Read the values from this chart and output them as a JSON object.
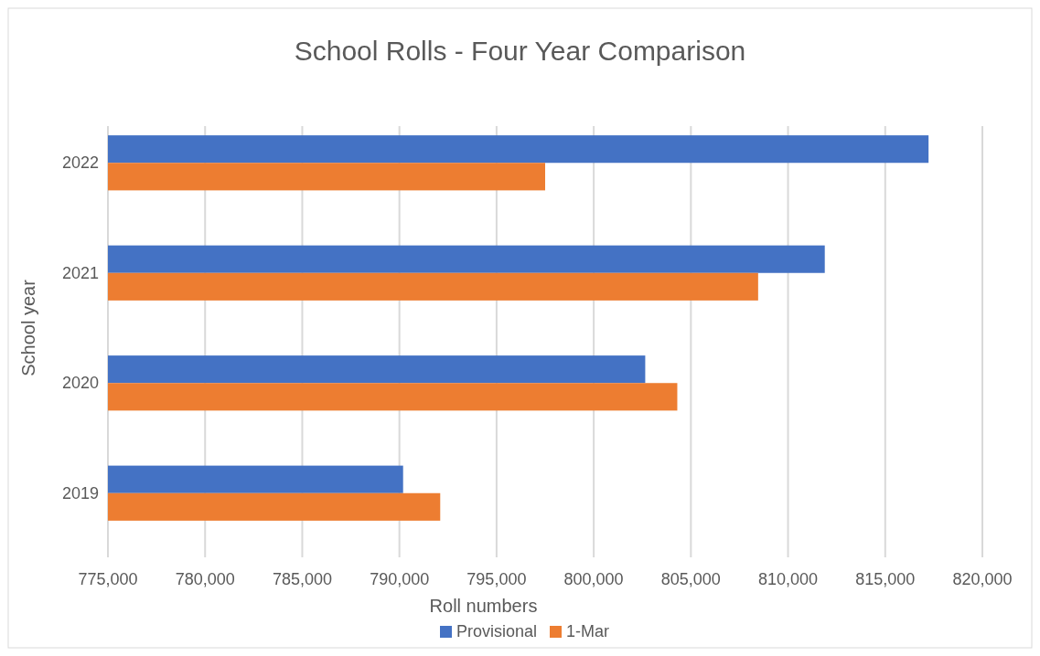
{
  "chart_data": {
    "type": "bar",
    "orientation": "horizontal",
    "title": "School Rolls - Four Year Comparison",
    "xlabel": "Roll numbers",
    "ylabel": "School year",
    "categories": [
      "2022",
      "2021",
      "2020",
      "2019"
    ],
    "series": [
      {
        "name": "Provisional",
        "color": "#4472c4",
        "values": [
          817230,
          811890,
          802650,
          790190
        ]
      },
      {
        "name": "1-Mar",
        "color": "#ed7d31",
        "values": [
          797500,
          808460,
          804300,
          792100
        ]
      }
    ],
    "xlim": [
      775000,
      820000
    ],
    "xticks": [
      {
        "value": 775000,
        "label": "775,000"
      },
      {
        "value": 780000,
        "label": "780,000"
      },
      {
        "value": 785000,
        "label": "785,000"
      },
      {
        "value": 790000,
        "label": "790,000"
      },
      {
        "value": 795000,
        "label": "795,000"
      },
      {
        "value": 800000,
        "label": "800,000"
      },
      {
        "value": 805000,
        "label": "805,000"
      },
      {
        "value": 810000,
        "label": "810,000"
      },
      {
        "value": 815000,
        "label": "815,000"
      },
      {
        "value": 820000,
        "label": "820,000"
      }
    ],
    "grid": "x",
    "legend": "bottom"
  }
}
